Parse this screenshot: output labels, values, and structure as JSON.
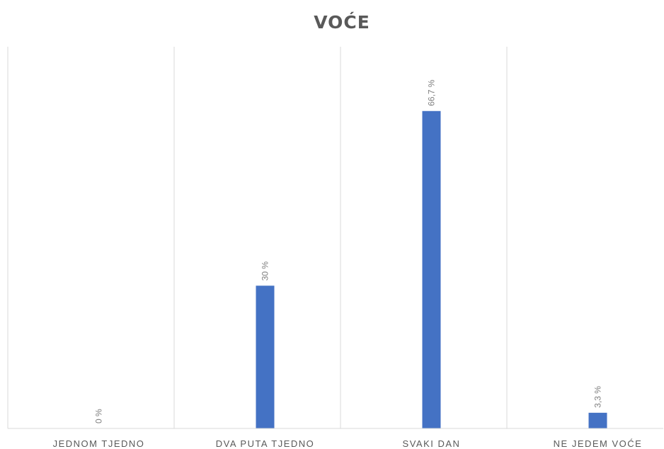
{
  "chart_data": {
    "type": "bar",
    "title": "VOĆE",
    "xlabel": "",
    "ylabel": "",
    "categories": [
      "JEDNOM TJEDNO",
      "DVA PUTA TJEDNO",
      "SVAKI DAN",
      "NE JEDEM VOĆE"
    ],
    "values": [
      0,
      30,
      66.7,
      3.3
    ],
    "data_labels": [
      "0 %",
      "30 %",
      "66,7 %",
      "3,3 %"
    ],
    "ylim": [
      0,
      80
    ],
    "grid": "vertical category separators",
    "legend": "none",
    "bar_color": "#4472C4",
    "grid_color": "#D9D9D9"
  }
}
